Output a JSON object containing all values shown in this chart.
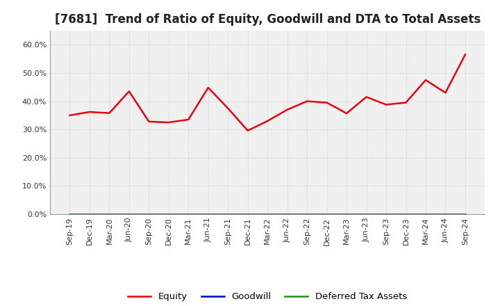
{
  "title": "[7681]  Trend of Ratio of Equity, Goodwill and DTA to Total Assets",
  "x_labels": [
    "Sep-19",
    "Dec-19",
    "Mar-20",
    "Jun-20",
    "Sep-20",
    "Dec-20",
    "Mar-21",
    "Jun-21",
    "Sep-21",
    "Dec-21",
    "Mar-22",
    "Jun-22",
    "Sep-22",
    "Dec-22",
    "Mar-23",
    "Jun-23",
    "Sep-23",
    "Dec-23",
    "Mar-24",
    "Jun-24",
    "Sep-24"
  ],
  "equity": [
    0.35,
    0.362,
    0.358,
    0.435,
    0.328,
    0.325,
    0.335,
    0.448,
    0.375,
    0.296,
    0.33,
    0.37,
    0.4,
    0.395,
    0.357,
    0.415,
    0.388,
    0.395,
    0.475,
    0.43,
    0.565
  ],
  "goodwill": [
    0.0,
    0.0,
    0.0,
    0.0,
    0.0,
    0.0,
    0.0,
    0.0,
    0.0,
    0.0,
    0.0,
    0.0,
    0.0,
    0.0,
    0.0,
    0.0,
    0.0,
    0.0,
    0.0,
    0.0,
    0.0
  ],
  "dta": [
    0.0,
    0.0,
    0.0,
    0.0,
    0.0,
    0.0,
    0.0,
    0.0,
    0.0,
    0.0,
    0.0,
    0.0,
    0.0,
    0.0,
    0.0,
    0.0,
    0.0,
    0.0,
    0.0,
    0.0,
    0.0
  ],
  "equity_color": "#e8000d",
  "goodwill_color": "#0000cd",
  "dta_color": "#228b22",
  "ylim": [
    0.0,
    0.65
  ],
  "yticks": [
    0.0,
    0.1,
    0.2,
    0.3,
    0.4,
    0.5,
    0.6
  ],
  "background_color": "#ffffff",
  "plot_bg_color": "#f0f0f0",
  "grid_color": "#cccccc",
  "title_fontsize": 12,
  "tick_fontsize": 8,
  "legend_labels": [
    "Equity",
    "Goodwill",
    "Deferred Tax Assets"
  ]
}
